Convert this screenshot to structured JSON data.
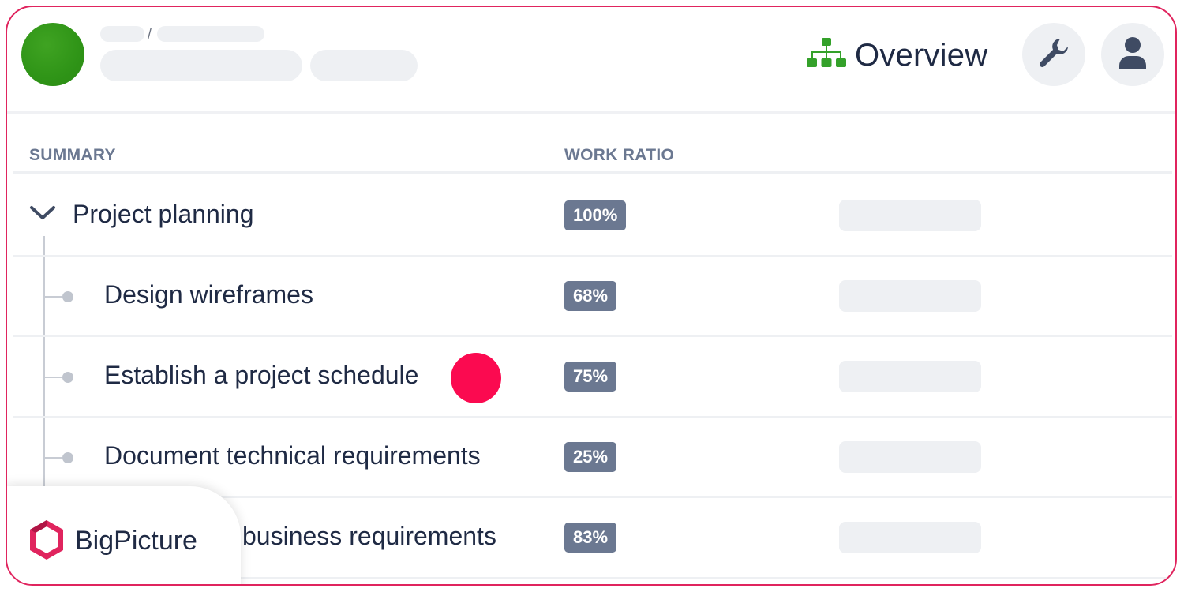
{
  "header": {
    "breadcrumb_separator": "/",
    "view_label": "Overview",
    "view_icon": "hierarchy-icon",
    "settings_icon": "wrench-icon",
    "profile_icon": "user-icon",
    "project_avatar_color": "#2f9417",
    "view_icon_color": "#34a12a"
  },
  "table": {
    "columns": [
      "SUMMARY",
      "WORK RATIO"
    ],
    "rows": [
      {
        "title": "Project planning",
        "ratio": "100%",
        "type": "parent",
        "expanded": true
      },
      {
        "title": "Design wireframes",
        "ratio": "68%",
        "type": "child"
      },
      {
        "title": "Establish a project schedule",
        "ratio": "75%",
        "type": "child",
        "highlighted": true
      },
      {
        "title": "Document technical requirements",
        "ratio": "25%",
        "type": "child"
      },
      {
        "title": "business requirements",
        "ratio": "83%",
        "type": "child"
      }
    ]
  },
  "brand": {
    "name": "BigPicture",
    "logo_icon": "bigpicture-logo-icon",
    "accent_color": "#e0245e"
  },
  "colors": {
    "frame_border": "#e0245e",
    "badge_bg": "#6b7891",
    "marker": "#fb0a50",
    "text": "#1f2a44"
  }
}
